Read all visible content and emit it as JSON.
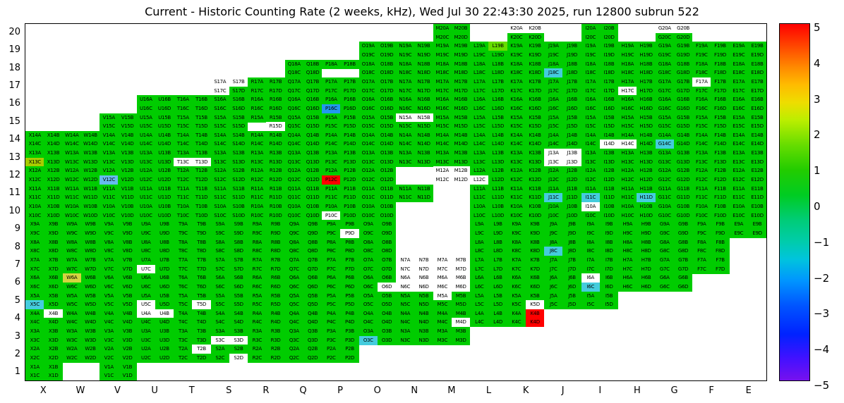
{
  "title": "Current - Historic Counting Rate (2 weeks, kHz), Wed Jul 30 22:43:30 2025, run 12800 subrun 522",
  "palette": {
    "green": "#00cc00",
    "lime": "#66dd00",
    "yellow": "#d4d440",
    "yellow_green": "#a8cc00",
    "cyan": "#44ccdd",
    "light_blue": "#66bbee",
    "blue": "#2299ee",
    "red": "#ff0000",
    "white": "#ffffff"
  },
  "colorbar": {
    "tick_labels": [
      "5",
      "4",
      "3",
      "2",
      "1",
      "0",
      "−1",
      "−2",
      "−3",
      "−4",
      "−5"
    ],
    "range": [
      -5,
      5
    ],
    "gradient": [
      [
        0,
        "#ff0000"
      ],
      [
        6,
        "#ff4400"
      ],
      [
        12,
        "#ff8800"
      ],
      [
        17,
        "#ffbb00"
      ],
      [
        22,
        "#eedd00"
      ],
      [
        27,
        "#bbee00"
      ],
      [
        34,
        "#66dd00"
      ],
      [
        41,
        "#22cc00"
      ],
      [
        48,
        "#00cc22"
      ],
      [
        55,
        "#00cc77"
      ],
      [
        61,
        "#00ccaa"
      ],
      [
        66,
        "#00c4dd"
      ],
      [
        72,
        "#0095ff"
      ],
      [
        79,
        "#0055ff"
      ],
      [
        87,
        "#0022ff"
      ],
      [
        94,
        "#4411ff"
      ],
      [
        100,
        "#7711ee"
      ]
    ]
  },
  "chart_data": {
    "type": "heatmap",
    "title": "Current - Historic Counting Rate (2 weeks, kHz), Wed Jul 30 22:43:30 2025, run 12800 subrun 522",
    "x_categories": [
      "X",
      "W",
      "V",
      "U",
      "T",
      "S",
      "R",
      "Q",
      "P",
      "O",
      "N",
      "M",
      "L",
      "K",
      "J",
      "I",
      "H",
      "G",
      "F",
      "E"
    ],
    "y_categories": [
      20,
      19,
      18,
      17,
      16,
      15,
      14,
      13,
      12,
      11,
      10,
      9,
      8,
      7,
      6,
      5,
      4,
      3,
      2,
      1
    ],
    "subcells": [
      "A",
      "B",
      "C",
      "D"
    ],
    "colorbar_range": [
      -5,
      5
    ],
    "colorbar_ticks": [
      5,
      4,
      3,
      2,
      1,
      0,
      -1,
      -2,
      -3,
      -4,
      -5
    ],
    "default_color": "green",
    "value_map": {
      "green": 0.5,
      "lime": 1.5,
      "yellow": 2.5,
      "yellow_green": 2.0,
      "cyan": -1.0,
      "light_blue": -1.5,
      "blue": -2.0,
      "red": 5.0,
      "white": null
    },
    "row_presence": {
      "20": [
        "M",
        "K",
        "I",
        "G"
      ],
      "19": [
        "O",
        "N",
        "M",
        "L",
        "K",
        "J",
        "I",
        "H",
        "G",
        "F",
        "E"
      ],
      "18": [
        "Q",
        "P",
        "O",
        "N",
        "M",
        "L",
        "K",
        "J",
        "I",
        "H",
        "G",
        "F",
        "E"
      ],
      "17": [
        "S",
        "R",
        "Q",
        "P",
        "O",
        "N",
        "M",
        "L",
        "K",
        "J",
        "I",
        "H",
        "G",
        "F",
        "E"
      ],
      "16": [
        "U",
        "T",
        "S",
        "R",
        "Q",
        "P",
        "O",
        "N",
        "M",
        "L",
        "K",
        "J",
        "I",
        "H",
        "G",
        "F",
        "E"
      ],
      "15": [
        "V",
        "U",
        "T",
        "S",
        "R",
        "Q",
        "P",
        "O",
        "N",
        "M",
        "L",
        "K",
        "J",
        "I",
        "H",
        "G",
        "F",
        "E"
      ],
      "14": [
        "X",
        "W",
        "V",
        "U",
        "T",
        "S",
        "R",
        "Q",
        "P",
        "O",
        "N",
        "M",
        "L",
        "K",
        "J",
        "I",
        "H",
        "G",
        "F",
        "E"
      ],
      "13": [
        "X",
        "W",
        "V",
        "U",
        "T",
        "S",
        "R",
        "Q",
        "P",
        "O",
        "N",
        "M",
        "L",
        "K",
        "J",
        "I",
        "H",
        "G",
        "F",
        "E"
      ],
      "12": [
        "X",
        "W",
        "V",
        "U",
        "T",
        "S",
        "R",
        "Q",
        "P",
        "O",
        "M",
        "L",
        "K",
        "J",
        "I",
        "H",
        "G",
        "F",
        "E"
      ],
      "11": [
        "X",
        "W",
        "V",
        "U",
        "T",
        "S",
        "R",
        "Q",
        "P",
        "O",
        "N",
        "L",
        "K",
        "J",
        "I",
        "H",
        "G",
        "F",
        "E"
      ],
      "10": [
        "X",
        "W",
        "V",
        "U",
        "T",
        "S",
        "R",
        "Q",
        "P",
        "O",
        "L",
        "K",
        "J",
        "I",
        "H",
        "G",
        "F",
        "E"
      ],
      "9": [
        "X",
        "W",
        "V",
        "U",
        "T",
        "S",
        "R",
        "Q",
        "P",
        "O",
        "L",
        "K",
        "J",
        "I",
        "H",
        "G",
        "F",
        "E"
      ],
      "8": [
        "X",
        "W",
        "V",
        "U",
        "T",
        "S",
        "R",
        "Q",
        "P",
        "O",
        "L",
        "K",
        "J",
        "I",
        "H",
        "G",
        "F"
      ],
      "7": [
        "X",
        "W",
        "V",
        "U",
        "T",
        "S",
        "R",
        "Q",
        "P",
        "O",
        "N",
        "M",
        "L",
        "K",
        "J",
        "I",
        "H",
        "G",
        "F"
      ],
      "6": [
        "X",
        "W",
        "V",
        "U",
        "T",
        "S",
        "R",
        "Q",
        "P",
        "O",
        "N",
        "M",
        "L",
        "K",
        "J",
        "I",
        "H",
        "G"
      ],
      "5": [
        "X",
        "W",
        "V",
        "U",
        "T",
        "S",
        "R",
        "Q",
        "P",
        "O",
        "N",
        "M",
        "L",
        "K",
        "J",
        "I"
      ],
      "4": [
        "X",
        "W",
        "V",
        "U",
        "T",
        "S",
        "R",
        "Q",
        "P",
        "O",
        "N",
        "M",
        "L",
        "K"
      ],
      "3": [
        "X",
        "W",
        "V",
        "U",
        "T",
        "S",
        "R",
        "Q",
        "P",
        "O",
        "N",
        "M"
      ],
      "2": [
        "X",
        "W",
        "V",
        "U",
        "T",
        "S",
        "R",
        "Q",
        "P"
      ],
      "1": [
        "X",
        "V"
      ]
    },
    "absent_subcells": [
      "P18C",
      "P18D",
      "R15C"
    ],
    "overrides": {
      "K20A": "white",
      "K20B": "white",
      "G20A": "white",
      "G20B": "white",
      "L19B": "lime",
      "J18C": "cyan",
      "S17A": "white",
      "S17B": "white",
      "S17C": "white",
      "F17A": "white",
      "H17C": "white",
      "P16C": "blue",
      "N15A": "white",
      "N15B": "white",
      "R15D": "white",
      "I14D": "white",
      "H14C": "white",
      "G14C": "cyan",
      "X13C": "yellow_green",
      "T13C": "white",
      "T13D": "white",
      "J13A": "white",
      "J13B": "white",
      "J13C": "white",
      "J13D": "white",
      "V12C": "light_blue",
      "P12C": "red",
      "M12A": "white",
      "M12B": "white",
      "M12C": "white",
      "M12D": "white",
      "L12C": "white",
      "J11C": "cyan",
      "I11C": "cyan",
      "H11D": "cyan",
      "P10C": "white",
      "I10A": "white",
      "P9D": "white",
      "J8C": "cyan",
      "U7C": "white",
      "N7A": "white",
      "N7B": "white",
      "N7C": "white",
      "N7D": "white",
      "M7A": "white",
      "M7B": "white",
      "M7C": "white",
      "M7D": "white",
      "W6A": "yellow",
      "N6A": "white",
      "N6B": "white",
      "N6C": "white",
      "N6D": "white",
      "M6A": "white",
      "M6B": "white",
      "M6C": "white",
      "M6D": "white",
      "I6A": "white",
      "I6C": "cyan",
      "O6D": "white",
      "X5C": "cyan",
      "M5A": "white",
      "U5C": "white",
      "T5D": "white",
      "K5D": "white",
      "X4B": "white",
      "U4A": "white",
      "U4B": "white",
      "M4D": "white",
      "K4B": "red",
      "K4D": "red",
      "S3C": "white",
      "S3D": "white",
      "O3C": "cyan",
      "T2B": "white",
      "S2D": "white"
    }
  }
}
